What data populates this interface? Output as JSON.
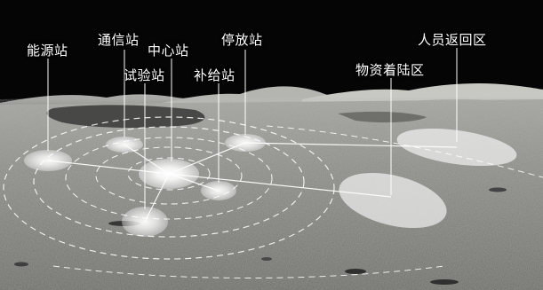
{
  "labels": {
    "energy_station": "能源站",
    "comm_station": "通信站",
    "central_station": "中心站",
    "test_station": "试验站",
    "supply_station": "补给站",
    "parking_station": "停放站",
    "material_landing_area": "物资着陆区",
    "crew_return_area": "人员返回区"
  },
  "colors": {
    "sky": "#050505",
    "ground": "#8a8a86",
    "overlay": "#ffffff"
  }
}
